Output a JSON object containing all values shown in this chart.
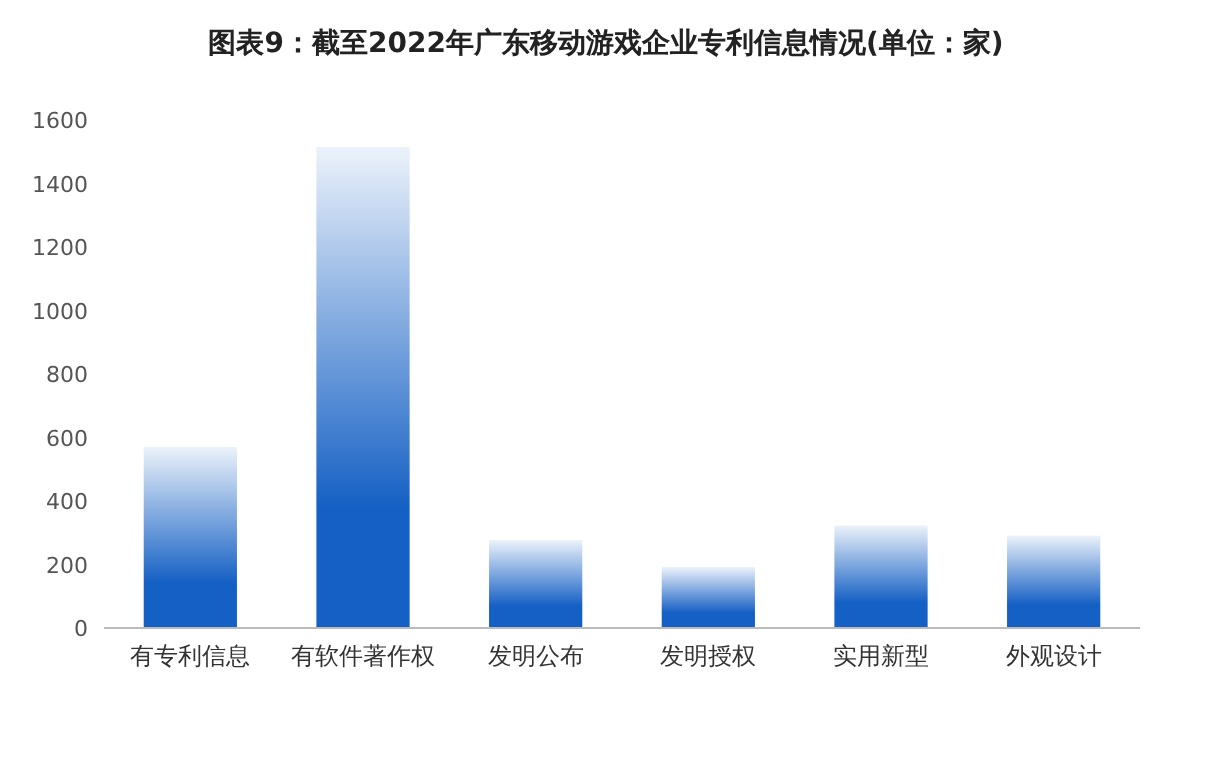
{
  "chart_data": {
    "type": "bar",
    "title": "图表9：截至2022年广东移动游戏企业专利信息情况(单位：家)",
    "categories": [
      "有专利信息",
      "有软件著作权",
      "发明公布",
      "发明授权",
      "实用新型",
      "外观设计"
    ],
    "values": [
      570,
      1515,
      277,
      192,
      323,
      291
    ],
    "color": "#1560c4",
    "ylim": [
      0,
      1600
    ],
    "yticks": [
      0,
      200,
      400,
      600,
      800,
      1000,
      1200,
      1400,
      1600
    ]
  }
}
